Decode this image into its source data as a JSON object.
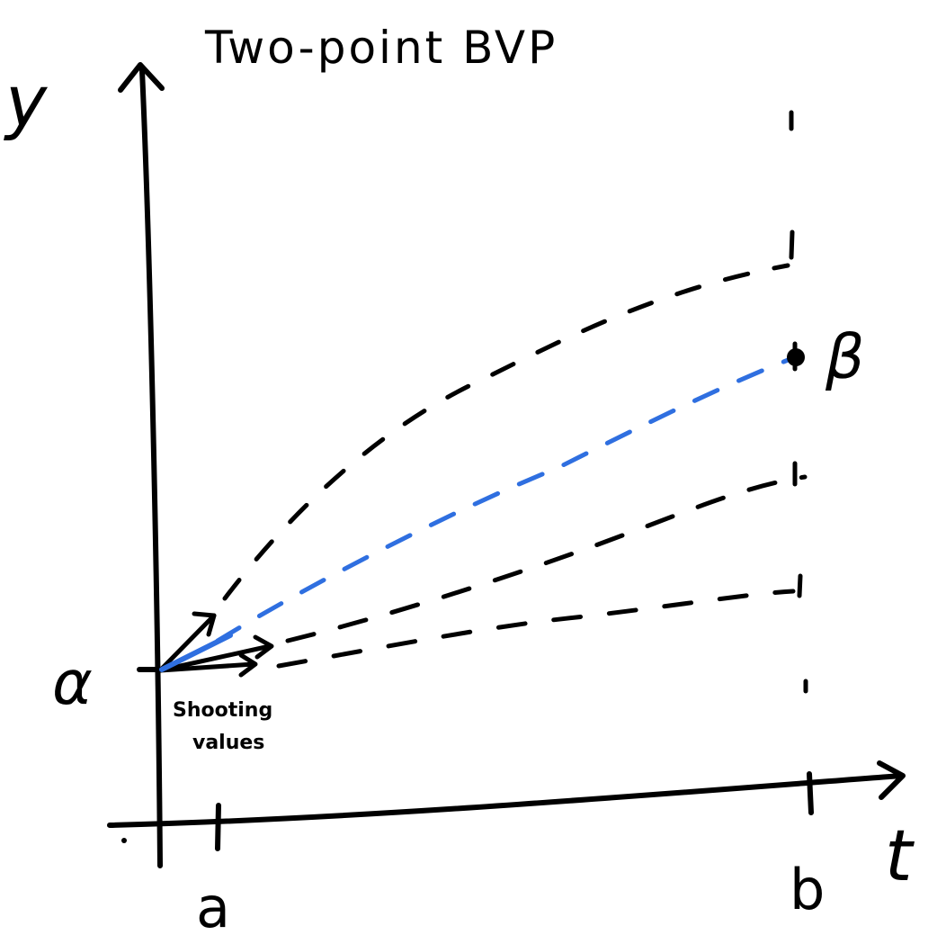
{
  "title": "Two-point BVP",
  "axes": {
    "y_label": "y",
    "x_label": "t",
    "tick_a": "a",
    "tick_b": "b"
  },
  "labels": {
    "alpha": "α",
    "beta": "β",
    "shooting_line1": "Shooting",
    "shooting_line2": "values"
  },
  "colors": {
    "ink": "#000000",
    "highlight": "#2f6fe0"
  },
  "icons": {
    "target_point": "filled-dot-icon"
  }
}
